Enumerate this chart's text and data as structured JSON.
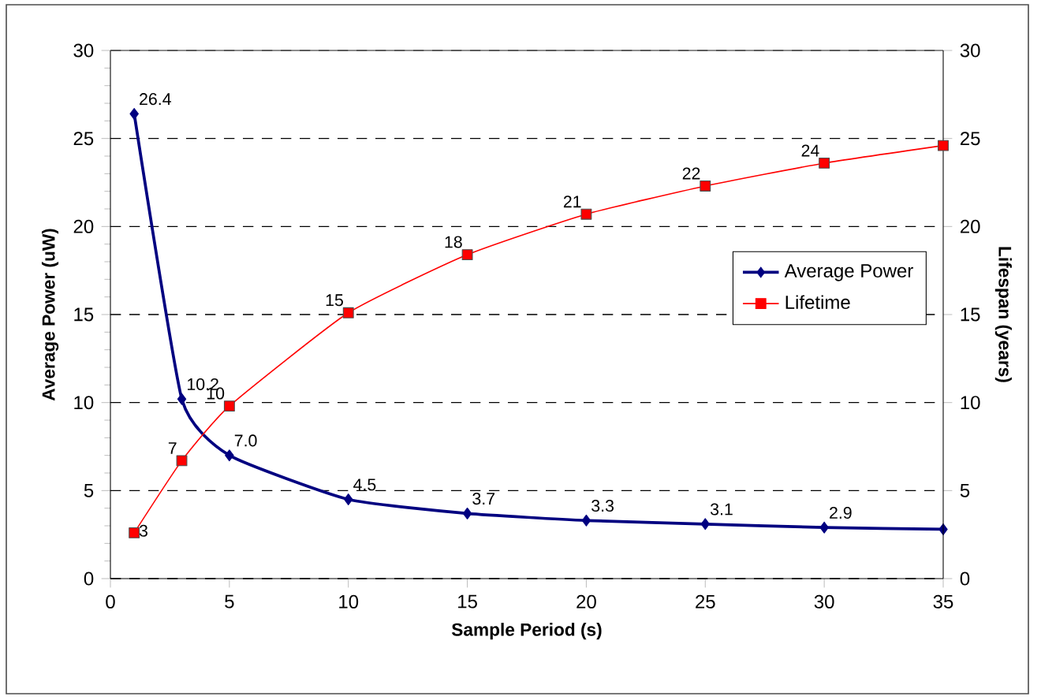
{
  "chart_data": {
    "type": "line",
    "xlabel": "Sample Period (s)",
    "ylabel": "Average Power (uW)",
    "y2label": "Lifespan (years)",
    "x": [
      1,
      3,
      5,
      10,
      15,
      20,
      25,
      30,
      35
    ],
    "xlim": [
      0,
      35
    ],
    "xticks": [
      0,
      5,
      10,
      15,
      20,
      25,
      30,
      35
    ],
    "ylim": [
      0,
      30
    ],
    "yticks": [
      0,
      5,
      10,
      15,
      20,
      25,
      30
    ],
    "y2lim": [
      0,
      30
    ],
    "y2ticks": [
      0,
      5,
      10,
      15,
      20,
      25,
      30
    ],
    "grid": "y",
    "legend": "right",
    "series": [
      {
        "name": "Average Power",
        "color": "#000080",
        "marker": "diamond",
        "values": [
          26.4,
          10.2,
          7.0,
          4.5,
          3.7,
          3.3,
          3.1,
          2.9,
          2.8
        ],
        "value_labels": [
          "26.4",
          "10.2",
          "7.0",
          "4.5",
          "3.7",
          "3.3",
          "3.1",
          "2.9",
          null
        ]
      },
      {
        "name": "Lifetime",
        "color": "#ff0000",
        "marker": "square",
        "axis": "y2",
        "values": [
          2.6,
          6.7,
          9.8,
          15.1,
          18.4,
          20.7,
          22.3,
          23.6,
          24.6
        ],
        "value_labels": [
          "3",
          "7",
          "10",
          "15",
          "18",
          "21",
          "22",
          "24",
          null
        ]
      }
    ]
  }
}
